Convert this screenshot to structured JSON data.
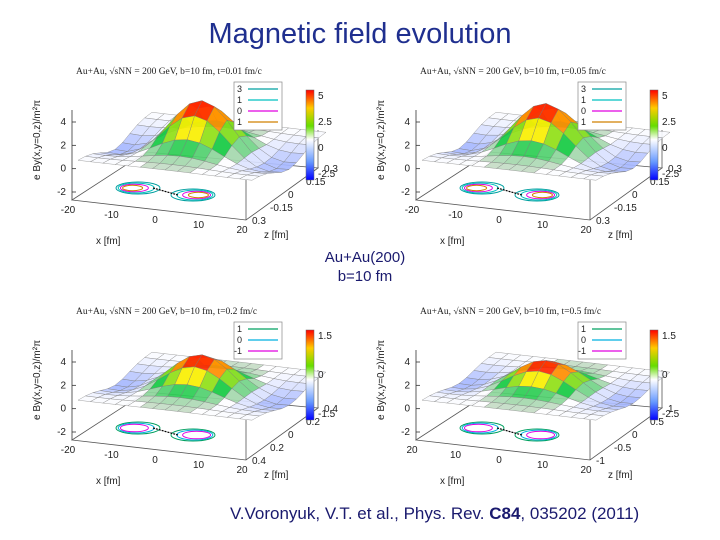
{
  "slide": {
    "title": "Magnetic field  evolution",
    "center_label_line1": "Au+Au(200)",
    "center_label_line2": "b=10 fm",
    "citation_prefix": "V.Voronyuk, V.T. et  al., Phys. Rev. ",
    "citation_volume": "C84",
    "citation_suffix": ", 035202  (2011)"
  },
  "chart_data": [
    {
      "type": "surface3d",
      "title": "Au+Au, √sNN = 200 GeV,  b=10 fm,  t=0.01 fm/c",
      "zlabel": "e By(x,y=0,z)/m²π",
      "xlabel": "x [fm]",
      "ylabel": "z [fm]",
      "z_ticks": [
        "4",
        "2",
        "0",
        "-2"
      ],
      "x_ticks": [
        "-20",
        "-10",
        "0",
        "10",
        "20"
      ],
      "y_ticks": [
        "0.3",
        "-0.15",
        "0",
        "0.15",
        "0.3"
      ],
      "colorbar_ticks": [
        "5",
        "2.5",
        "0",
        "-2.5"
      ],
      "legend": [
        {
          "label": "3",
          "color": "#00a0a0"
        },
        {
          "label": "1",
          "color": "#00c0c0"
        },
        {
          "label": "0",
          "color": "#e000e0"
        },
        {
          "label": "1",
          "color": "#d08000"
        }
      ],
      "peak_height": 0.8
    },
    {
      "type": "surface3d",
      "title": "Au+Au, √sNN = 200 GeV,  b=10 fm,  t=0.05 fm/c",
      "zlabel": "e By(x,y=0,z)/m²π",
      "xlabel": "x [fm]",
      "ylabel": "z [fm]",
      "z_ticks": [
        "4",
        "2",
        "0",
        "-2"
      ],
      "x_ticks": [
        "-20",
        "-10",
        "0",
        "10",
        "20"
      ],
      "y_ticks": [
        "0.3",
        "-0.15",
        "0",
        "0.15",
        "0.3"
      ],
      "colorbar_ticks": [
        "5",
        "2.5",
        "0",
        "-2.5"
      ],
      "legend": [
        {
          "label": "3",
          "color": "#00a0a0"
        },
        {
          "label": "1",
          "color": "#00c0c0"
        },
        {
          "label": "0",
          "color": "#e000e0"
        },
        {
          "label": "1",
          "color": "#d08000"
        }
      ],
      "peak_height": 0.75
    },
    {
      "type": "surface3d",
      "title": "Au+Au, √sNN = 200 GeV,  b=10 fm,  t=0.2 fm/c",
      "zlabel": "e By(x,y=0,z)/m²π",
      "xlabel": "x [fm]",
      "ylabel": "z [fm]",
      "z_ticks": [
        "4",
        "2",
        "0",
        "-2"
      ],
      "x_ticks": [
        "-20",
        "-10",
        "0",
        "10",
        "20"
      ],
      "y_ticks": [
        "0.4",
        "0.2",
        "0",
        "0.2",
        "0.4"
      ],
      "colorbar_ticks": [
        "1.5",
        "0",
        "-1.5"
      ],
      "legend": [
        {
          "label": "1",
          "color": "#00a060"
        },
        {
          "label": "0",
          "color": "#00b0e0"
        },
        {
          "label": "-1",
          "color": "#e000e0"
        }
      ],
      "peak_height": 0.55
    },
    {
      "type": "surface3d",
      "title": "Au+Au, √sNN = 200 GeV,  b=10 fm,  t=0.5 fm/c",
      "zlabel": "e By(x,y=0,z)/m²π",
      "xlabel": "x [fm]",
      "ylabel": "z [fm]",
      "z_ticks": [
        "4",
        "2",
        "0",
        "-2"
      ],
      "x_ticks": [
        "20",
        "10",
        "0",
        "10",
        "20"
      ],
      "y_ticks": [
        "-1",
        "-0.5",
        "0",
        "0.5",
        "1"
      ],
      "colorbar_ticks": [
        "1.5",
        "0",
        "-2.5"
      ],
      "legend": [
        {
          "label": "1",
          "color": "#00a060"
        },
        {
          "label": "0",
          "color": "#00b0e0"
        },
        {
          "label": "-1",
          "color": "#e000e0"
        }
      ],
      "peak_height": 0.45
    }
  ]
}
